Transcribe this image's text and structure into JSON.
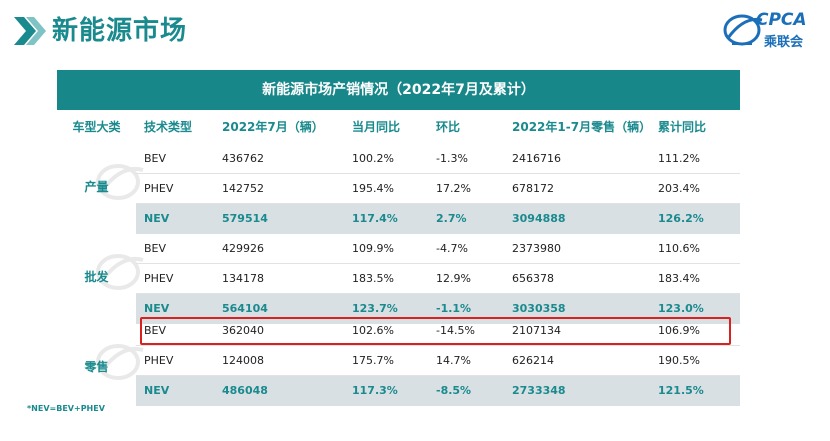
{
  "page": {
    "title": "新能源市场",
    "logo_text": "CPCA",
    "logo_sub": "乘联会"
  },
  "table": {
    "title": "新能源市场产销情况（2022年7月及累计）",
    "headers": [
      "车型大类",
      "技术类型",
      "2022年7月（辆）",
      "当月同比",
      "环比",
      "2022年1-7月零售（辆）",
      "累计同比"
    ],
    "groups": [
      {
        "category": "产量",
        "rows": [
          [
            "BEV",
            "436762",
            "100.2%",
            "-1.3%",
            "2416716",
            "111.2%"
          ],
          [
            "PHEV",
            "142752",
            "195.4%",
            "17.2%",
            "678172",
            "203.4%"
          ],
          [
            "NEV",
            "579514",
            "117.4%",
            "2.7%",
            "3094888",
            "126.2%"
          ]
        ]
      },
      {
        "category": "批发",
        "rows": [
          [
            "BEV",
            "429926",
            "109.9%",
            "-4.7%",
            "2373980",
            "110.6%"
          ],
          [
            "PHEV",
            "134178",
            "183.5%",
            "12.9%",
            "656378",
            "183.4%"
          ],
          [
            "NEV",
            "564104",
            "123.7%",
            "-1.1%",
            "3030358",
            "123.0%"
          ]
        ]
      },
      {
        "category": "零售",
        "rows": [
          [
            "BEV",
            "362040",
            "102.6%",
            "-14.5%",
            "2107134",
            "106.9%"
          ],
          [
            "PHEV",
            "124008",
            "175.7%",
            "14.7%",
            "626214",
            "190.5%"
          ],
          [
            "NEV",
            "486048",
            "117.3%",
            "-8.5%",
            "2733348",
            "121.5%"
          ]
        ]
      }
    ],
    "footnote": "*NEV=BEV+PHEV"
  },
  "colors": {
    "teal": "#188789",
    "title_teal": "#1a8a8e",
    "nev_row_bg": "#d9e0e3",
    "highlight_red": "#d9211f",
    "logo_blue": "#1b6fb8"
  }
}
